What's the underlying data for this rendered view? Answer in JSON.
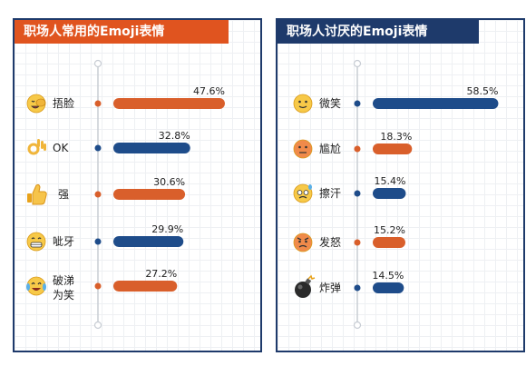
{
  "colors": {
    "orange": "#d95f2b",
    "navy": "#1e4c8a",
    "axis": "#c8cdd4"
  },
  "charts": [
    {
      "title": "职场人常用的Emoji表情",
      "title_color": "#e0541f",
      "chart_data": {
        "type": "bar",
        "orientation": "horizontal",
        "title": "职场人常用的Emoji表情",
        "xlim": [
          0,
          60
        ],
        "grid": true,
        "points": [
          {
            "label": "捂脸",
            "icon": "facepalm-emoji-icon",
            "value": 47.6,
            "display": "47.6%",
            "color": "#d95f2b"
          },
          {
            "label": "OK",
            "icon": "ok-hand-emoji-icon",
            "value": 32.8,
            "display": "32.8%",
            "color": "#1e4c8a"
          },
          {
            "label": "强",
            "icon": "thumbs-up-emoji-icon",
            "value": 30.6,
            "display": "30.6%",
            "color": "#d95f2b"
          },
          {
            "label": "呲牙",
            "icon": "grin-emoji-icon",
            "value": 29.9,
            "display": "29.9%",
            "color": "#1e4c8a"
          },
          {
            "label": "破涕为笑",
            "icon": "tears-of-joy-emoji-icon",
            "value": 27.2,
            "display": "27.2%",
            "color": "#d95f2b"
          }
        ]
      }
    },
    {
      "title": "职场人讨厌的Emoji表情",
      "title_color": "#1e3a6b",
      "chart_data": {
        "type": "bar",
        "orientation": "horizontal",
        "title": "职场人讨厌的Emoji表情",
        "xlim": [
          0,
          60
        ],
        "grid": true,
        "points": [
          {
            "label": "微笑",
            "icon": "smile-emoji-icon",
            "value": 58.5,
            "display": "58.5%",
            "color": "#1e4c8a"
          },
          {
            "label": "尴尬",
            "icon": "awkward-emoji-icon",
            "value": 18.3,
            "display": "18.3%",
            "color": "#d95f2b"
          },
          {
            "label": "擦汗",
            "icon": "sweat-emoji-icon",
            "value": 15.4,
            "display": "15.4%",
            "color": "#1e4c8a"
          },
          {
            "label": "发怒",
            "icon": "angry-emoji-icon",
            "value": 15.2,
            "display": "15.2%",
            "color": "#d95f2b"
          },
          {
            "label": "炸弹",
            "icon": "bomb-emoji-icon",
            "value": 14.5,
            "display": "14.5%",
            "color": "#1e4c8a"
          }
        ]
      }
    }
  ]
}
